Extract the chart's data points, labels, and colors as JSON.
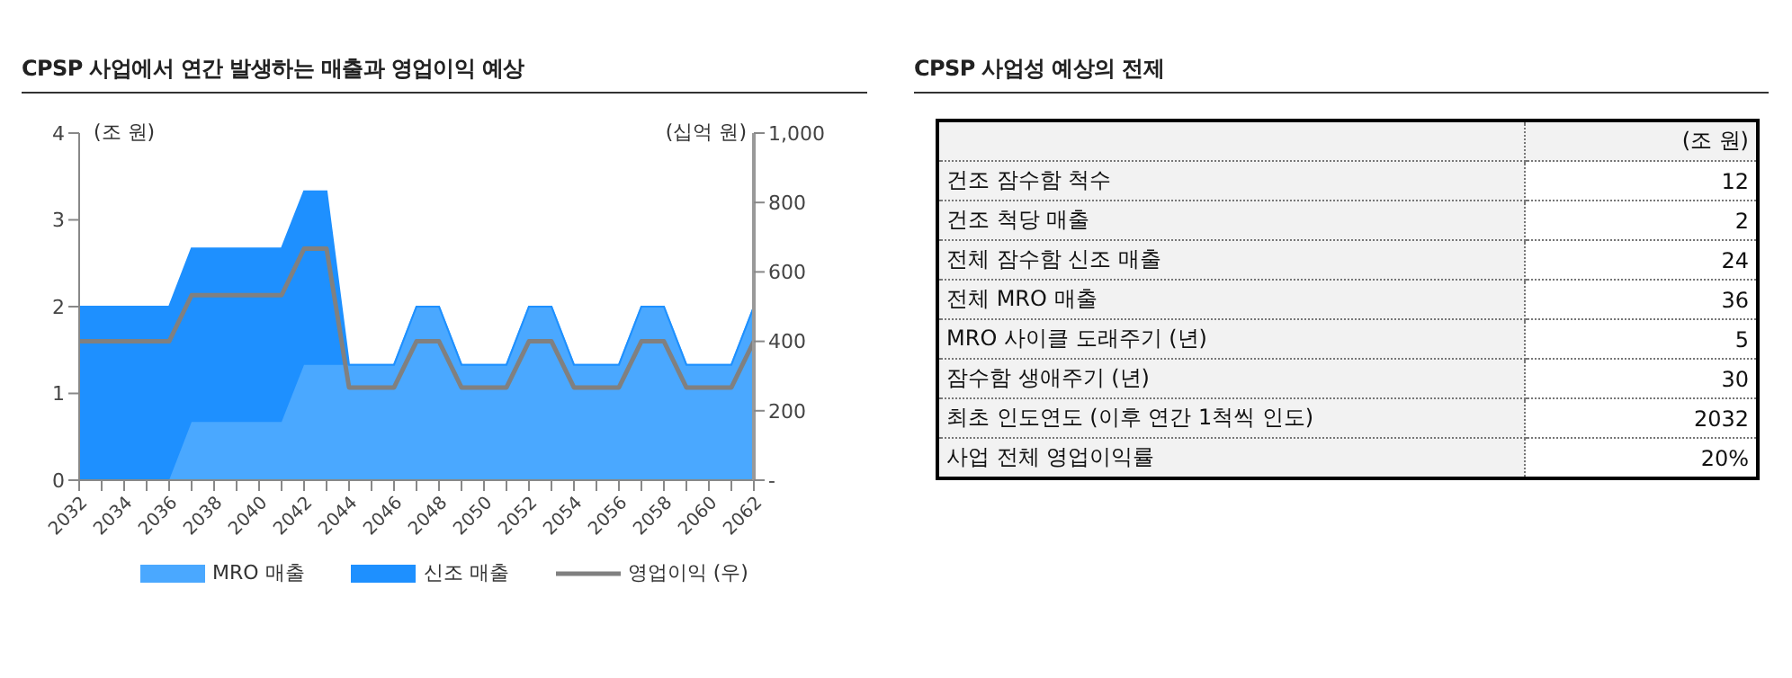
{
  "chart_data": [
    {
      "type": "area",
      "title": "CPSP 사업에서 연간 발생하는 매출과 영업이익 예상",
      "ylabel": "(조 원)",
      "y2label": "(십억 원)",
      "stacked": true,
      "legend": "bottom",
      "categories": [
        "2032",
        null,
        "2034",
        null,
        "2036",
        null,
        "2038",
        null,
        "2040",
        null,
        "2042",
        null,
        "2044",
        null,
        "2046",
        null,
        "2048",
        null,
        "2050",
        null,
        "2052",
        null,
        "2054",
        null,
        "2056",
        null,
        "2058",
        null,
        "2060",
        null,
        "2062"
      ],
      "ylim": [
        0,
        4
      ],
      "yticks": [
        0,
        1,
        2,
        3,
        4
      ],
      "y2lim": [
        0,
        1000
      ],
      "y2ticks": [
        {
          "value": 0,
          "label": "-"
        },
        200,
        400,
        600,
        800,
        {
          "value": 1000,
          "label": "1,000"
        }
      ],
      "series": [
        {
          "name": "MRO 매출",
          "color": "#4aa8ff",
          "values": [
            0,
            0,
            0,
            0,
            0,
            0.67,
            0.67,
            0.67,
            0.67,
            0.67,
            1.33,
            1.33,
            1.33,
            1.33,
            1.33,
            2,
            2,
            1.33,
            1.33,
            1.33,
            2,
            2,
            1.33,
            1.33,
            1.33,
            2,
            2,
            1.33,
            1.33,
            1.33,
            2
          ]
        },
        {
          "name": "신조 매출",
          "color": "#1e90ff",
          "values": [
            2,
            2,
            2,
            2,
            2,
            2,
            2,
            2,
            2,
            2,
            2,
            2,
            0,
            0,
            0,
            0,
            0,
            0,
            0,
            0,
            0,
            0,
            0,
            0,
            0,
            0,
            0,
            0,
            0,
            0,
            0
          ]
        },
        {
          "name": "영업이익 (우)",
          "type": "line",
          "axis": "y2",
          "color": "#808080",
          "marker": "none",
          "values": [
            400,
            400,
            400,
            400,
            400,
            533,
            533,
            533,
            533,
            533,
            667,
            667,
            267,
            267,
            267,
            400,
            400,
            267,
            267,
            267,
            400,
            400,
            267,
            267,
            267,
            400,
            400,
            267,
            267,
            267,
            400
          ]
        }
      ]
    },
    {
      "type": "other",
      "title": "CPSP 사업성 예상의 전제",
      "annotations": [
        "(조 원)"
      ],
      "categories": [
        "건조 잠수함 척수",
        "건조 척당 매출",
        "전체 잠수함 신조 매출",
        "전체 MRO 매출",
        "MRO 사이클 도래주기 (년)",
        "잠수함 생애주기 (년)",
        "최초 인도연도 (이후 연간 1척씩 인도)",
        "사업 전체 영업이익률"
      ],
      "value_labels": [
        "12",
        "2",
        "24",
        "36",
        "5",
        "30",
        "2032",
        "20%"
      ]
    }
  ]
}
